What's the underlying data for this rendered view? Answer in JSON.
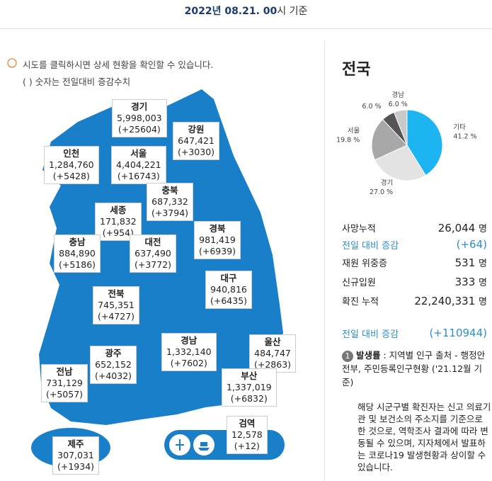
{
  "header": {
    "date": "2022년 08.21. 00",
    "suffix": "시 기준"
  },
  "notes": [
    "시도를 클릭하시면 상세 현황을 확인할 수 있습니다.",
    "( ) 숫자는 전일대비 증감수치"
  ],
  "regions": [
    {
      "name": "경기",
      "total": "5,998,003",
      "change": "(+25604)"
    },
    {
      "name": "강원",
      "total": "647,421",
      "change": "(+3030)"
    },
    {
      "name": "인천",
      "total": "1,284,760",
      "change": "(+5428)"
    },
    {
      "name": "서울",
      "total": "4,404,221",
      "change": "(+16743)"
    },
    {
      "name": "충북",
      "total": "687,332",
      "change": "(+3794)"
    },
    {
      "name": "세종",
      "total": "171,832",
      "change": "(+954)"
    },
    {
      "name": "충남",
      "total": "884,890",
      "change": "(+5186)"
    },
    {
      "name": "대전",
      "total": "637,490",
      "change": "(+3772)"
    },
    {
      "name": "경북",
      "total": "981,419",
      "change": "(+6939)"
    },
    {
      "name": "대구",
      "total": "940,816",
      "change": "(+6435)"
    },
    {
      "name": "전북",
      "total": "745,351",
      "change": "(+4727)"
    },
    {
      "name": "경남",
      "total": "1,332,140",
      "change": "(+7602)"
    },
    {
      "name": "울산",
      "total": "484,747",
      "change": "(+2863)"
    },
    {
      "name": "광주",
      "total": "652,152",
      "change": "(+4032)"
    },
    {
      "name": "전남",
      "total": "731,129",
      "change": "(+5057)"
    },
    {
      "name": "부산",
      "total": "1,337,019",
      "change": "(+6832)"
    },
    {
      "name": "제주",
      "total": "307,031",
      "change": "(+1934)"
    },
    {
      "name": "검역",
      "total": "12,578",
      "change": "(+12)"
    }
  ],
  "panel": {
    "title": "전국"
  },
  "chart_data": {
    "type": "pie",
    "categories": [
      "기타",
      "경기",
      "서울",
      null,
      "경남"
    ],
    "values": [
      41.2,
      27.0,
      19.8,
      6.0,
      6.0
    ],
    "value_labels": [
      "41.2 %",
      "27.0 %",
      "19.8 %",
      "6.0 %",
      "6.0 %"
    ],
    "colors": [
      "#1cb5f2",
      "#e3e3e3",
      "#a8a8a8",
      "#555555",
      "#c9c9c9"
    ]
  },
  "summary": [
    {
      "label": "사망누적",
      "value": "26,044",
      "unit": "명"
    },
    {
      "label": "전일 대비 증감",
      "value": "(+64)"
    },
    {
      "label": "재원 위중증",
      "value": "531",
      "unit": "명"
    },
    {
      "label": "신규입원",
      "value": "333",
      "unit": "명"
    },
    {
      "label": "확진 누적",
      "value": "22,240,331",
      "unit": "명"
    },
    {
      "label": "전일 대비 증감",
      "value": "(+110944)"
    }
  ],
  "footnote": {
    "number": "1",
    "term": "발생률",
    "text": ": 지역별 인구 출처 - 행정안전부, 주민등록인구현황 ('21.12월 기준)",
    "body": "해당 시군구별 확진자는 신고 의료기관 및 보건소의 주소지를 기준으로 한 것으로, 역학조사 결과에 따라 변동될 수 있으며, 지자체에서 발표하는 코로나19 발생현황과 상이할 수 있습니다."
  }
}
